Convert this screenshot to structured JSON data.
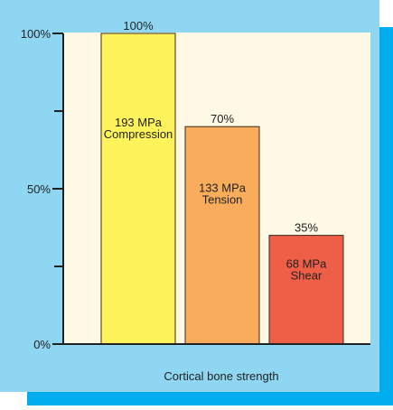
{
  "colors": {
    "panel_bg": "#8fd6f3",
    "plot_bg": "#fdf9e5",
    "shadow": "#00aeef",
    "axis": "#222222"
  },
  "chart_data": {
    "type": "bar",
    "title": "",
    "xlabel": "Cortical bone strength",
    "ylabel": "",
    "ylim": [
      0,
      100
    ],
    "yticks": [
      {
        "value": 0,
        "label": "0%"
      },
      {
        "value": 50,
        "label": "50%"
      },
      {
        "value": 100,
        "label": "100%"
      }
    ],
    "minor_yticks": [
      25,
      75
    ],
    "grid": false,
    "bars": [
      {
        "value": 100,
        "top_label": "100%",
        "inner_label": [
          "193 MPa",
          "Compression"
        ],
        "color": "#fff35c"
      },
      {
        "value": 70,
        "top_label": "70%",
        "inner_label": [
          "133 MPa",
          "Tension"
        ],
        "color": "#f9ad5c"
      },
      {
        "value": 35,
        "top_label": "35%",
        "inner_label": [
          "68 MPa",
          "Shear"
        ],
        "color": "#ef5e46"
      }
    ]
  }
}
